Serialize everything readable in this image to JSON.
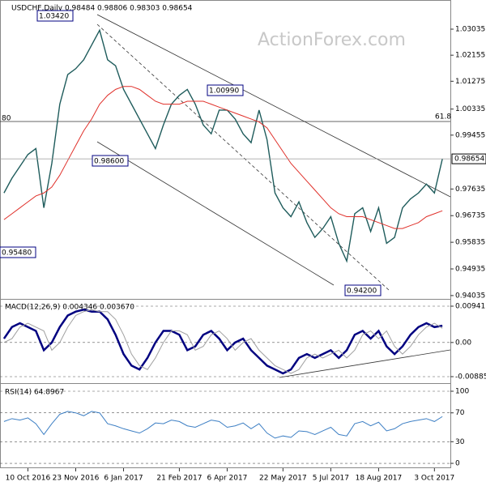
{
  "chart_data": [
    {
      "type": "line",
      "title": "USDCHF,Daily 0.98484 0.98806 0.98303 0.98654",
      "watermark": "ActionForex.com",
      "x": [
        -3,
        -2,
        -1,
        0,
        1,
        2,
        3,
        4,
        5,
        6,
        7,
        8,
        9,
        10,
        11,
        12,
        13,
        14,
        15,
        16,
        17,
        18,
        19,
        20,
        21,
        22,
        23,
        24,
        25,
        26,
        27,
        28,
        29,
        30,
        31,
        32,
        33,
        34,
        35,
        36,
        37,
        38,
        39,
        40,
        41,
        42,
        43,
        44,
        45,
        46,
        47,
        48,
        49,
        50,
        51,
        52
      ],
      "series": [
        {
          "name": "Close",
          "color": "#1f5c5c",
          "values": [
            0.975,
            0.98,
            0.984,
            0.988,
            0.99,
            0.97,
            0.985,
            1.005,
            1.015,
            1.017,
            1.02,
            1.025,
            1.03,
            1.02,
            1.018,
            1.01,
            1.005,
            1.0,
            0.995,
            0.99,
            0.998,
            1.005,
            1.008,
            1.01,
            1.005,
            0.998,
            0.995,
            1.003,
            1.003,
            1.0,
            0.995,
            0.992,
            1.003,
            0.993,
            0.975,
            0.97,
            0.967,
            0.972,
            0.965,
            0.96,
            0.963,
            0.967,
            0.958,
            0.952,
            0.968,
            0.97,
            0.962,
            0.97,
            0.958,
            0.96,
            0.97,
            0.973,
            0.975,
            0.978,
            0.975,
            0.98654
          ]
        },
        {
          "name": "MA",
          "color": "#e0302a",
          "values": [
            0.966,
            0.968,
            0.97,
            0.972,
            0.974,
            0.975,
            0.977,
            0.981,
            0.986,
            0.991,
            0.996,
            1.0,
            1.005,
            1.008,
            1.01,
            1.011,
            1.011,
            1.01,
            1.008,
            1.006,
            1.005,
            1.005,
            1.005,
            1.006,
            1.006,
            1.006,
            1.005,
            1.004,
            1.003,
            1.002,
            1.001,
            1.0,
            0.999,
            0.997,
            0.993,
            0.989,
            0.985,
            0.982,
            0.979,
            0.976,
            0.973,
            0.97,
            0.968,
            0.967,
            0.967,
            0.967,
            0.966,
            0.965,
            0.964,
            0.963,
            0.963,
            0.964,
            0.965,
            0.967,
            0.968,
            0.969
          ]
        }
      ],
      "current_price": 0.98654,
      "annotations": [
        "1.03420",
        "1.00990",
        "0.98600",
        "0.95480",
        "0.94200",
        "61.8",
        "80"
      ],
      "xlim": [
        -3.5,
        53
      ],
      "ylim": [
        0.9395,
        1.0402
      ],
      "yticks": [
        1.03035,
        1.02155,
        1.01275,
        1.00335,
        0.99455,
        0.97635,
        0.96735,
        0.95835,
        0.94935,
        0.94035
      ],
      "grid": false
    },
    {
      "type": "line",
      "title": "MACD(12,26,9) 0.004346 0.003670",
      "x": [
        -3,
        -2,
        -1,
        0,
        1,
        2,
        3,
        4,
        5,
        6,
        7,
        8,
        9,
        10,
        11,
        12,
        13,
        14,
        15,
        16,
        17,
        18,
        19,
        20,
        21,
        22,
        23,
        24,
        25,
        26,
        27,
        28,
        29,
        30,
        31,
        32,
        33,
        34,
        35,
        36,
        37,
        38,
        39,
        40,
        41,
        42,
        43,
        44,
        45,
        46,
        47,
        48,
        49,
        50,
        51,
        52
      ],
      "series": [
        {
          "name": "MACD",
          "color": "#000080",
          "values": [
            0.001,
            0.004,
            0.005,
            0.004,
            0.003,
            -0.002,
            0.0,
            0.004,
            0.007,
            0.008,
            0.0085,
            0.008,
            0.008,
            0.006,
            0.002,
            -0.003,
            -0.006,
            -0.007,
            -0.004,
            0.0,
            0.003,
            0.003,
            0.002,
            -0.002,
            -0.001,
            0.002,
            0.003,
            0.001,
            -0.002,
            0.0,
            0.001,
            -0.002,
            -0.004,
            -0.006,
            -0.007,
            -0.008,
            -0.007,
            -0.004,
            -0.003,
            -0.004,
            -0.003,
            -0.002,
            -0.004,
            -0.002,
            0.002,
            0.003,
            0.001,
            0.003,
            -0.001,
            -0.003,
            -0.001,
            0.002,
            0.004,
            0.005,
            0.004,
            0.004346
          ]
        },
        {
          "name": "Signal",
          "color": "#a0a0a0",
          "values": [
            0.0,
            0.001,
            0.004,
            0.005,
            0.004,
            0.003,
            -0.002,
            0.0,
            0.004,
            0.007,
            0.008,
            0.0085,
            0.008,
            0.008,
            0.006,
            0.002,
            -0.003,
            -0.006,
            -0.007,
            -0.004,
            0.0,
            0.003,
            0.003,
            0.002,
            -0.002,
            -0.001,
            0.002,
            0.003,
            0.001,
            -0.002,
            0.0,
            0.001,
            -0.002,
            -0.004,
            -0.006,
            -0.007,
            -0.008,
            -0.007,
            -0.004,
            -0.003,
            -0.004,
            -0.003,
            -0.002,
            -0.004,
            -0.002,
            0.002,
            0.003,
            0.001,
            0.003,
            -0.001,
            -0.003,
            -0.001,
            0.002,
            0.004,
            0.005,
            0.00367
          ]
        }
      ],
      "xlim": [
        -3.5,
        53
      ],
      "ylim": [
        -0.00906,
        0.01109
      ],
      "yticks": [
        0.009411,
        {
          "value": 0,
          "label": "0.00"
        },
        -0.008852
      ],
      "grid": true
    },
    {
      "type": "line",
      "title": "RSI(14) 64.8967",
      "x": [
        -3,
        -2,
        -1,
        0,
        1,
        2,
        3,
        4,
        5,
        6,
        7,
        8,
        9,
        10,
        11,
        12,
        13,
        14,
        15,
        16,
        17,
        18,
        19,
        20,
        21,
        22,
        23,
        24,
        25,
        26,
        27,
        28,
        29,
        30,
        31,
        32,
        33,
        34,
        35,
        36,
        37,
        38,
        39,
        40,
        41,
        42,
        43,
        44,
        45,
        46,
        47,
        48,
        49,
        50,
        51,
        52
      ],
      "series": [
        {
          "name": "RSI",
          "color": "#3d7fc4",
          "values": [
            58,
            62,
            60,
            63,
            55,
            40,
            55,
            68,
            72,
            70,
            66,
            72,
            70,
            55,
            52,
            48,
            45,
            42,
            48,
            56,
            55,
            60,
            58,
            52,
            50,
            55,
            60,
            58,
            50,
            52,
            56,
            48,
            55,
            42,
            35,
            38,
            36,
            45,
            44,
            40,
            45,
            50,
            40,
            38,
            55,
            58,
            52,
            57,
            45,
            48,
            55,
            58,
            60,
            62,
            58,
            64.8967
          ]
        }
      ],
      "xlim": [
        -3.5,
        53
      ],
      "ylim": [
        -6.7,
        110.1
      ],
      "yticks": [
        100,
        70,
        30,
        0
      ],
      "xticks": [
        {
          "value": 0,
          "label": "10 Oct 2016"
        },
        {
          "value": 6,
          "label": "23 Nov 2016"
        },
        {
          "value": 12,
          "label": "6 Jan 2017"
        },
        {
          "value": 19,
          "label": "21 Feb 2017"
        },
        {
          "value": 25,
          "label": "6 Apr 2017"
        },
        {
          "value": 32,
          "label": "22 May 2017"
        },
        {
          "value": 38,
          "label": "5 Jul 2017"
        },
        {
          "value": 44,
          "label": "18 Aug 2017"
        },
        {
          "value": 51,
          "label": "3 Oct 2017"
        }
      ],
      "grid": true
    }
  ]
}
